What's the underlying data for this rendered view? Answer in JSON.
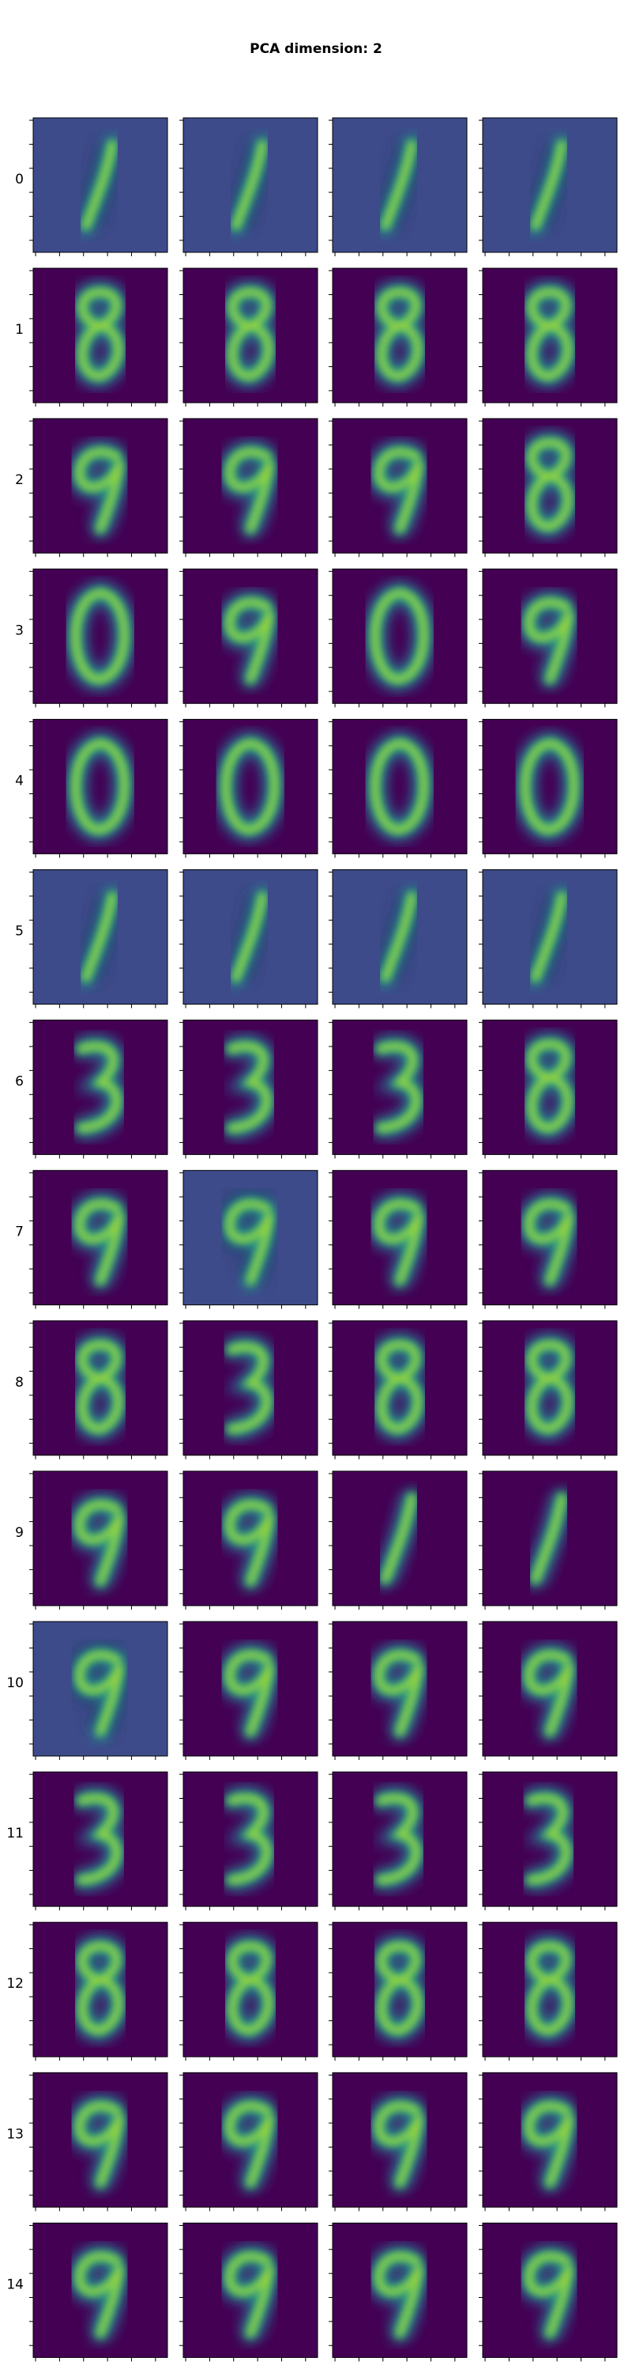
{
  "title": "PCA dimension: 2",
  "row_labels": [
    "0",
    "1",
    "2",
    "3",
    "4",
    "5",
    "6",
    "7",
    "8",
    "9",
    "10",
    "11",
    "12",
    "13",
    "14"
  ]
}
